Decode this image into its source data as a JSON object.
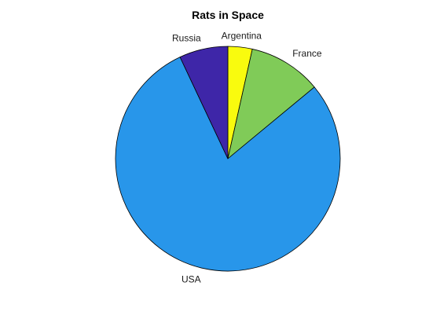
{
  "chart_data": {
    "type": "pie",
    "title": "Rats in Space",
    "slices": [
      {
        "label": "Argentina",
        "value": 3.5,
        "color": "#f9fb0e"
      },
      {
        "label": "France",
        "value": 10.5,
        "color": "#80cb58"
      },
      {
        "label": "USA",
        "value": 79.0,
        "color": "#2896ea"
      },
      {
        "label": "Russia",
        "value": 7.0,
        "color": "#3e26a8"
      }
    ],
    "start_angle": "12 o'clock",
    "direction": "clockwise",
    "legend": "none"
  }
}
